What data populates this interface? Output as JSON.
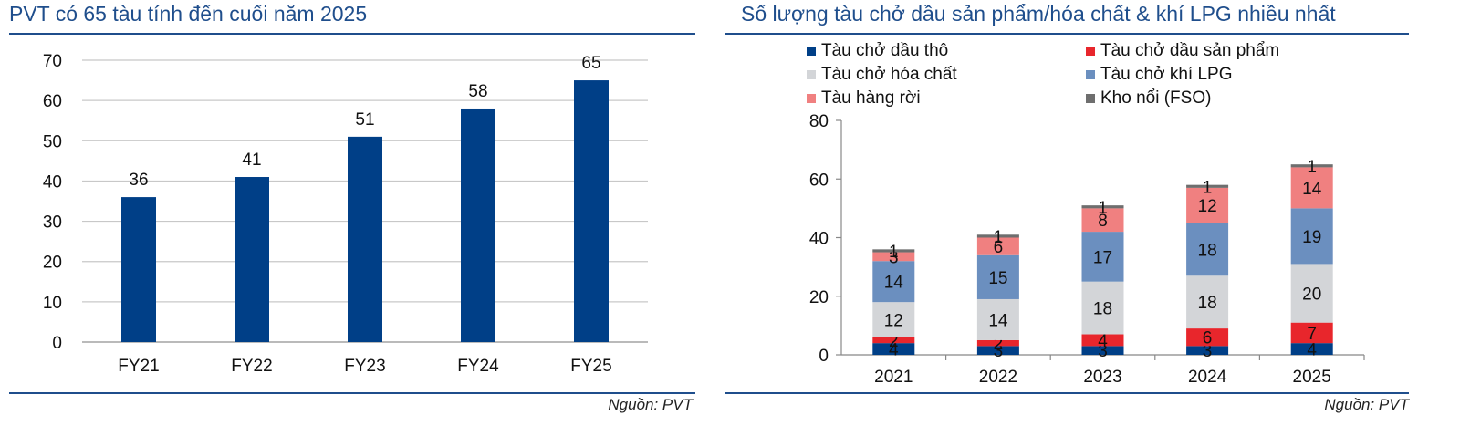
{
  "panels": {
    "left": {
      "title": "PVT có 65 tàu tính đến cuối năm 2025",
      "source": "Nguồn: PVT"
    },
    "right": {
      "title": "Số lượng tàu chở dầu sản phẩm/hóa chất & khí LPG nhiều nhất",
      "source": "Nguồn: PVT"
    }
  },
  "chart_data": [
    {
      "type": "bar",
      "title": "PVT có 65 tàu tính đến cuối năm 2025",
      "categories": [
        "FY21",
        "FY22",
        "FY23",
        "FY24",
        "FY25"
      ],
      "values": [
        36,
        41,
        51,
        58,
        65
      ],
      "ylim": [
        0,
        70
      ],
      "yticks": [
        0,
        10,
        20,
        30,
        40,
        50,
        60,
        70
      ],
      "grid": true,
      "color": "#003f87"
    },
    {
      "type": "bar",
      "stacked": true,
      "title": "Số lượng tàu chở dầu sản phẩm/hóa chất & khí LPG nhiều nhất",
      "categories": [
        "2021",
        "2022",
        "2023",
        "2024",
        "2025"
      ],
      "ylim": [
        0,
        80
      ],
      "yticks": [
        0,
        20,
        40,
        60,
        80
      ],
      "grid": false,
      "legend": "top",
      "series": [
        {
          "name": "Tàu chở dầu thô",
          "color": "#003f87",
          "values": [
            4,
            3,
            3,
            3,
            4
          ]
        },
        {
          "name": "Tàu chở dầu sản phẩm",
          "color": "#e8262c",
          "values": [
            2,
            2,
            4,
            6,
            7
          ]
        },
        {
          "name": "Tàu chở hóa chất",
          "color": "#d3d5d8",
          "values": [
            12,
            14,
            18,
            18,
            20
          ]
        },
        {
          "name": "Tàu chở khí LPG",
          "color": "#6b8fbf",
          "values": [
            14,
            15,
            17,
            18,
            19
          ]
        },
        {
          "name": "Tàu hàng rời",
          "color": "#f08080",
          "values": [
            3,
            6,
            8,
            12,
            14
          ]
        },
        {
          "name": "Kho nổi (FSO)",
          "color": "#6e6e6e",
          "values": [
            1,
            1,
            1,
            1,
            1
          ]
        }
      ]
    }
  ]
}
